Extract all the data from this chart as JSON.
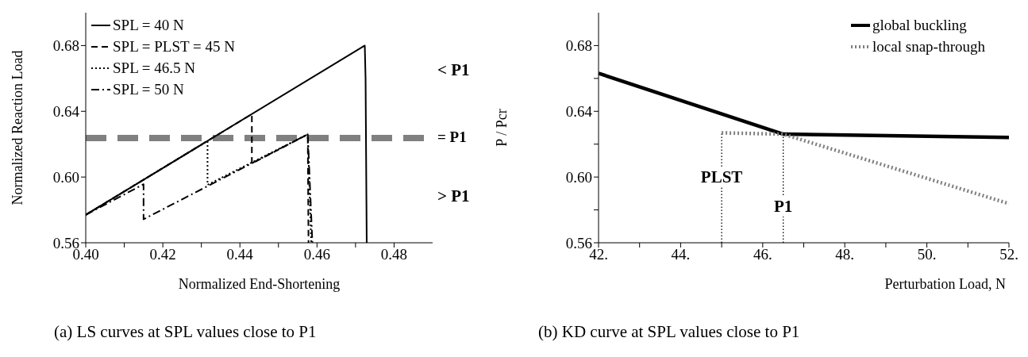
{
  "chart_data": [
    {
      "type": "line",
      "xlabel": "Normalized  End-Shortening",
      "ylabel": "Normalized Reaction Load",
      "xlim": [
        0.4,
        0.49
      ],
      "ylim": [
        0.56,
        0.7
      ],
      "xticks": [
        {
          "value": 0.4,
          "label": "0.40"
        },
        {
          "value": 0.41,
          "label": null
        },
        0.42,
        {
          "value": 0.43,
          "label": null
        },
        0.44,
        {
          "value": 0.45,
          "label": null
        },
        0.46,
        {
          "value": 0.47,
          "label": null
        },
        0.48
      ],
      "yticks": [
        0.56,
        {
          "value": 0.6,
          "label": "0.60"
        },
        0.64,
        0.68
      ],
      "legend": "top left",
      "marker": "none",
      "series": [
        {
          "name": "SPL = 40 N",
          "color": "#000000",
          "line_style": "solid",
          "x": [
            0.4,
            0.4724,
            0.4726,
            0.4729
          ],
          "values": [
            0.577,
            0.68,
            0.66,
            0.56
          ]
        },
        {
          "name": "SPL = PLST = 45 N",
          "color": "#000000",
          "line_style": "dashed",
          "x": [
            0.4,
            0.4431,
            0.4431,
            0.4576,
            0.4578
          ],
          "values": [
            0.577,
            0.6383,
            0.6082,
            0.626,
            0.56
          ]
        },
        {
          "name": "SPL = 46.5 N",
          "color": "#000000",
          "line_style": "dotted",
          "x": [
            0.4,
            0.4316,
            0.4316,
            0.4576,
            0.4585
          ],
          "values": [
            0.577,
            0.622,
            0.5953,
            0.626,
            0.56
          ]
        },
        {
          "name": "SPL = 50 N",
          "color": "#000000",
          "line_style": "dashdot",
          "x": [
            0.4,
            0.415,
            0.415,
            0.4576,
            0.4588
          ],
          "values": [
            0.577,
            0.5956,
            0.5743,
            0.626,
            0.56
          ]
        }
      ],
      "ref_lines": [
        {
          "axis": "y",
          "value": 0.6237,
          "label": "= P1",
          "color": "#808080",
          "line_style": "dashed"
        }
      ],
      "annotations": [
        "< P1",
        "> P1",
        "(a) LS curves at SPL values close to P1"
      ]
    },
    {
      "type": "line",
      "xlabel": "Perturbation Load, N",
      "ylabel": "P / Pcr",
      "xlim": [
        42,
        52
      ],
      "ylim": [
        0.56,
        0.7
      ],
      "xticks": [
        {
          "value": 42,
          "label": "42."
        },
        {
          "value": 43,
          "label": null
        },
        {
          "value": 44,
          "label": "44."
        },
        {
          "value": 45,
          "label": null
        },
        {
          "value": 46,
          "label": "46."
        },
        {
          "value": 47,
          "label": null
        },
        {
          "value": 48,
          "label": "48."
        },
        {
          "value": 49,
          "label": null
        },
        {
          "value": 50,
          "label": "50."
        },
        {
          "value": 51,
          "label": null
        },
        {
          "value": 52,
          "label": "52."
        }
      ],
      "yticks": [
        0.56,
        {
          "value": 0.58,
          "label": null
        },
        {
          "value": 0.6,
          "label": "0.60"
        },
        {
          "value": 0.62,
          "label": null
        },
        0.64,
        {
          "value": 0.66,
          "label": null
        },
        0.68
      ],
      "legend": "top right",
      "marker": "none",
      "series": [
        {
          "name": "global buckling",
          "color": "#000000",
          "line_style": "solid",
          "x": [
            42,
            46.5,
            52
          ],
          "values": [
            0.6631,
            0.6261,
            0.6241
          ]
        },
        {
          "name": "local snap-through",
          "color": "#808080",
          "line_style": "dotted",
          "x": [
            45,
            46.5,
            52
          ],
          "values": [
            0.6269,
            0.6261,
            0.5838
          ]
        }
      ],
      "ref_lines": [
        {
          "axis": "x",
          "value": 45,
          "color": "#000000",
          "line_style": "dotted"
        },
        {
          "axis": "x",
          "value": 46.5,
          "color": "#000000",
          "line_style": "dotted"
        }
      ],
      "annotations": [
        {
          "text": "PLST",
          "x": 45,
          "y": 0.6
        },
        {
          "text": "P1",
          "x": 46.5,
          "y": 0.582
        },
        "(b) KD curve at SPL values close to P1"
      ]
    }
  ]
}
